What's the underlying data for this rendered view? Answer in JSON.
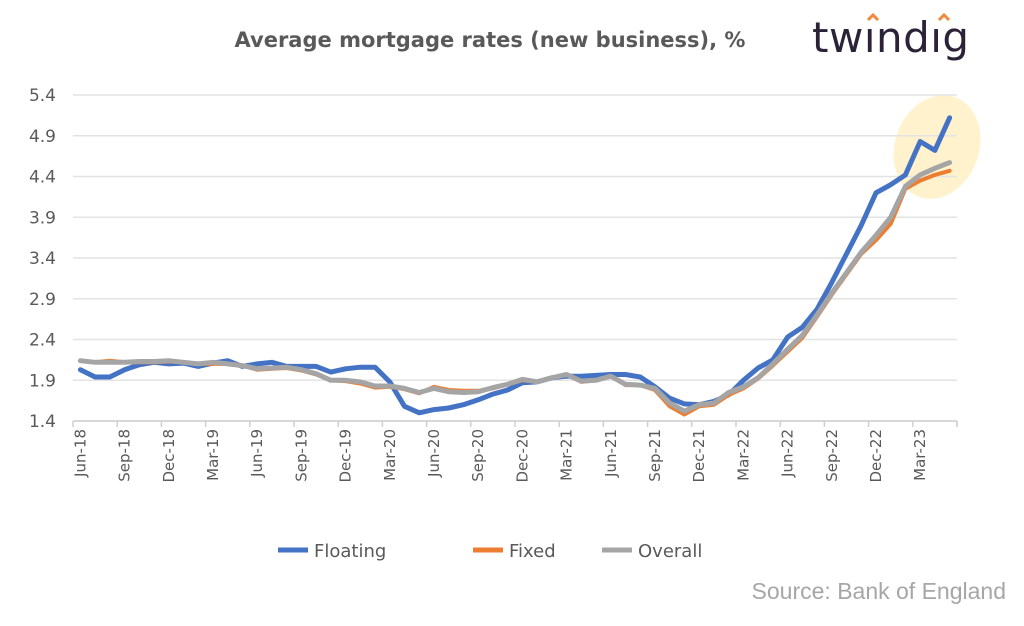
{
  "chart_data": {
    "type": "line",
    "title": "Average mortgage rates (new business), %",
    "xlabel": "",
    "ylabel": "",
    "ylim": [
      1.4,
      5.4
    ],
    "yticks": [
      "1.4",
      "1.9",
      "2.4",
      "2.9",
      "3.4",
      "3.9",
      "4.4",
      "4.9",
      "5.4"
    ],
    "grid": true,
    "legend_position": "bottom",
    "x_start": "Jun-18",
    "x_end": "May-23",
    "xtick_labels": [
      "Jun-18",
      "Sep-18",
      "Dec-18",
      "Mar-19",
      "Jun-19",
      "Sep-19",
      "Dec-19",
      "Mar-20",
      "Jun-20",
      "Sep-20",
      "Dec-20",
      "Mar-21",
      "Jun-21",
      "Sep-21",
      "Dec-21",
      "Mar-22",
      "Jun-22",
      "Sep-22",
      "Dec-22",
      "Mar-23"
    ],
    "xtick_every": 3,
    "series": [
      {
        "name": "Floating",
        "color": "#4472c4",
        "values": [
          2.03,
          1.94,
          1.94,
          2.03,
          2.09,
          2.12,
          2.1,
          2.11,
          2.07,
          2.11,
          2.14,
          2.07,
          2.1,
          2.12,
          2.07,
          2.07,
          2.07,
          2.0,
          2.04,
          2.06,
          2.06,
          1.88,
          1.58,
          1.5,
          1.54,
          1.56,
          1.6,
          1.66,
          1.73,
          1.78,
          1.87,
          1.88,
          1.93,
          1.95,
          1.95,
          1.96,
          1.97,
          1.97,
          1.94,
          1.82,
          1.68,
          1.61,
          1.6,
          1.64,
          1.72,
          1.9,
          2.05,
          2.15,
          2.43,
          2.55,
          2.77,
          3.1,
          3.45,
          3.8,
          4.2,
          4.3,
          4.42,
          4.83,
          4.72,
          5.12
        ]
      },
      {
        "name": "Fixed",
        "color": "#ed7d31",
        "values": [
          2.14,
          2.12,
          2.14,
          2.12,
          2.12,
          2.12,
          2.13,
          2.12,
          2.1,
          2.1,
          2.1,
          2.08,
          2.03,
          2.04,
          2.05,
          2.02,
          1.97,
          1.9,
          1.89,
          1.86,
          1.81,
          1.82,
          1.79,
          1.74,
          1.82,
          1.78,
          1.77,
          1.77,
          1.8,
          1.85,
          1.9,
          1.88,
          1.93,
          1.97,
          1.88,
          1.9,
          1.95,
          1.84,
          1.84,
          1.78,
          1.58,
          1.48,
          1.58,
          1.6,
          1.72,
          1.8,
          1.92,
          2.08,
          2.25,
          2.42,
          2.68,
          2.95,
          3.2,
          3.45,
          3.62,
          3.82,
          4.25,
          4.35,
          4.42,
          4.47
        ]
      },
      {
        "name": "Overall",
        "color": "#a5a5a5",
        "values": [
          2.14,
          2.12,
          2.12,
          2.12,
          2.13,
          2.13,
          2.14,
          2.12,
          2.1,
          2.12,
          2.1,
          2.08,
          2.04,
          2.05,
          2.06,
          2.03,
          1.98,
          1.9,
          1.9,
          1.88,
          1.83,
          1.83,
          1.8,
          1.75,
          1.8,
          1.76,
          1.75,
          1.76,
          1.81,
          1.85,
          1.91,
          1.88,
          1.93,
          1.97,
          1.89,
          1.9,
          1.95,
          1.85,
          1.84,
          1.8,
          1.62,
          1.52,
          1.6,
          1.62,
          1.75,
          1.82,
          1.93,
          2.1,
          2.28,
          2.45,
          2.7,
          2.97,
          3.22,
          3.47,
          3.68,
          3.9,
          4.28,
          4.42,
          4.5,
          4.57
        ]
      }
    ],
    "highlight_color": "#fff2cc",
    "source": "Source: Bank of England"
  },
  "brand": {
    "logo_text": "twindig",
    "logo_color": "#2b2238",
    "accent_color": "#f0883e"
  }
}
